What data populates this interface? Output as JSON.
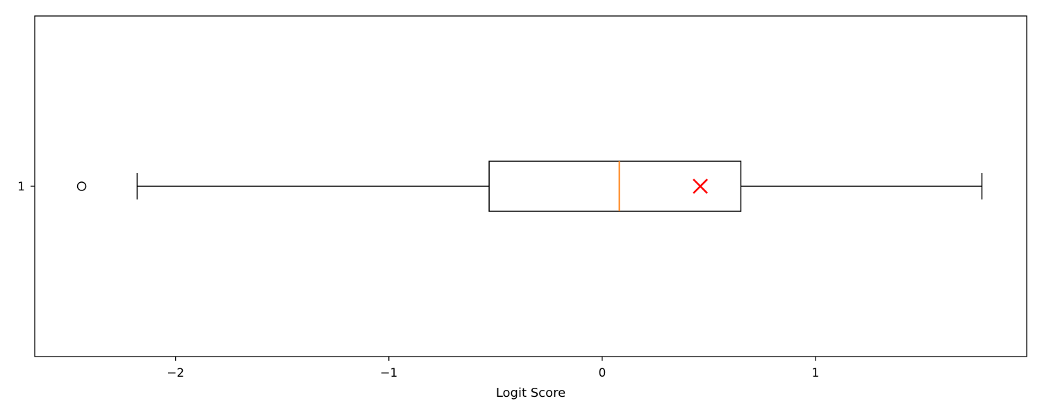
{
  "chart_data": {
    "type": "boxplot",
    "orientation": "horizontal",
    "title": "",
    "xlabel": "Logit Score",
    "ylabel": "",
    "xlim": [
      -2.66,
      1.99
    ],
    "x_ticks": [
      {
        "value": -2,
        "label": "−2"
      },
      {
        "value": -1,
        "label": "−1"
      },
      {
        "value": 0,
        "label": "0"
      },
      {
        "value": 1,
        "label": "1"
      }
    ],
    "y_ticks": [
      {
        "value": 1,
        "label": "1"
      }
    ],
    "grid": false,
    "boxes": [
      {
        "position": 1,
        "whisker_low": -2.18,
        "q1": -0.53,
        "median": 0.08,
        "q3": 0.65,
        "whisker_high": 1.78,
        "outliers": [
          -2.44
        ],
        "mean": 0.46
      }
    ],
    "colors": {
      "box": "#000000",
      "median": "#ff7f0e",
      "mean_marker": "#ff0000",
      "outlier": "#000000"
    },
    "mean_marker": "x"
  }
}
